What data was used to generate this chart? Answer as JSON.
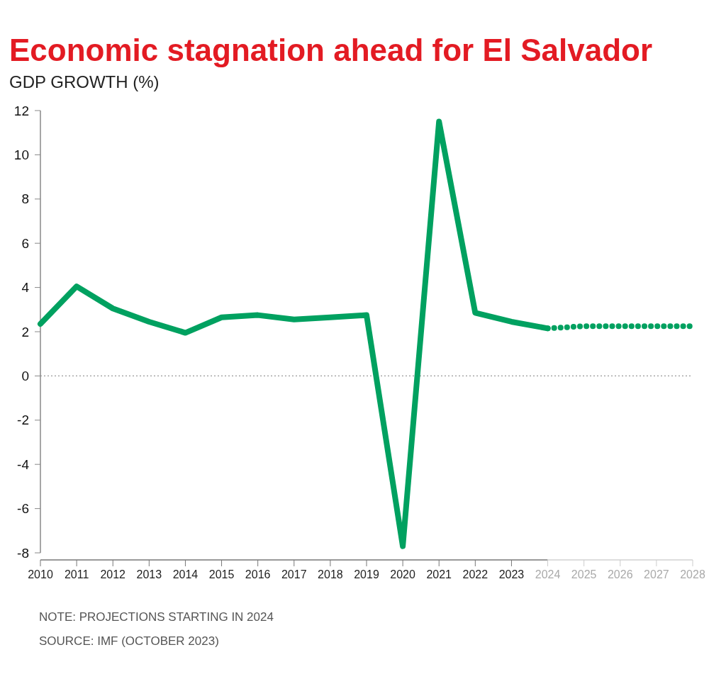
{
  "chart_data": {
    "type": "line",
    "title": "Economic stagnation ahead for El Salvador",
    "subtitle": "GDP GROWTH (%)",
    "series": [
      {
        "color": "#00a160",
        "line_style": "solid",
        "x": [
          2010,
          2011,
          2012,
          2013,
          2014,
          2015,
          2016,
          2017,
          2018,
          2019,
          2020,
          2021,
          2022,
          2023,
          2024
        ],
        "values": [
          2.35,
          4.05,
          3.05,
          2.45,
          1.95,
          2.65,
          2.75,
          2.55,
          2.65,
          2.75,
          -7.7,
          11.5,
          2.85,
          2.45,
          2.15
        ]
      },
      {
        "color": "#00a160",
        "line_style": "dotted",
        "x": [
          2024,
          2025,
          2026,
          2027,
          2028
        ],
        "values": [
          2.15,
          2.25,
          2.25,
          2.25,
          2.25
        ]
      }
    ],
    "xlim": [
      2010,
      2028
    ],
    "xticks": [
      2010,
      2011,
      2012,
      2013,
      2014,
      2015,
      2016,
      2017,
      2018,
      2019,
      2020,
      2021,
      2022,
      2023,
      2024,
      2025,
      2026,
      2027,
      2028
    ],
    "ylim": [
      -8,
      12
    ],
    "yticks": [
      -8,
      -6,
      -4,
      -2,
      0,
      2,
      4,
      6,
      8,
      10,
      12
    ],
    "ref_lines": [
      {
        "axis": "y",
        "value": 0,
        "color": "#999999",
        "line_style": "dotted"
      }
    ],
    "marker": "none",
    "annotations": [
      "NOTE: PROJECTIONS STARTING IN 2024",
      "SOURCE: IMF (OCTOBER 2023)"
    ]
  }
}
